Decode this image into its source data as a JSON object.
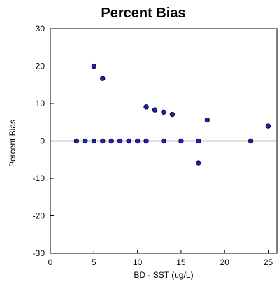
{
  "chart_data": {
    "type": "scatter",
    "title": "Percent Bias",
    "xlabel": "BD - SST (ug/L)",
    "ylabel": "Percent Bias",
    "xlim": [
      0,
      26
    ],
    "ylim": [
      -30,
      30
    ],
    "xticks": [
      0,
      5,
      10,
      15,
      20,
      25
    ],
    "yticks": [
      -30,
      -20,
      -10,
      0,
      10,
      20,
      30
    ],
    "reference_line_y": 0,
    "grid": false,
    "legend": "none",
    "marker_color": "#1f1fbf",
    "marker_edge_color": "#000000",
    "series": [
      {
        "x": [
          3,
          4,
          5,
          5,
          6,
          6,
          7,
          8,
          9,
          9,
          10,
          11,
          11,
          12,
          13,
          13,
          14,
          15,
          17,
          17,
          18,
          23,
          25
        ],
        "y": [
          0,
          0,
          0,
          20,
          0,
          16.7,
          0,
          0,
          0,
          0,
          0,
          0,
          9.1,
          8.3,
          0,
          7.7,
          7.1,
          0,
          0,
          -5.9,
          5.6,
          0,
          4
        ]
      }
    ]
  }
}
